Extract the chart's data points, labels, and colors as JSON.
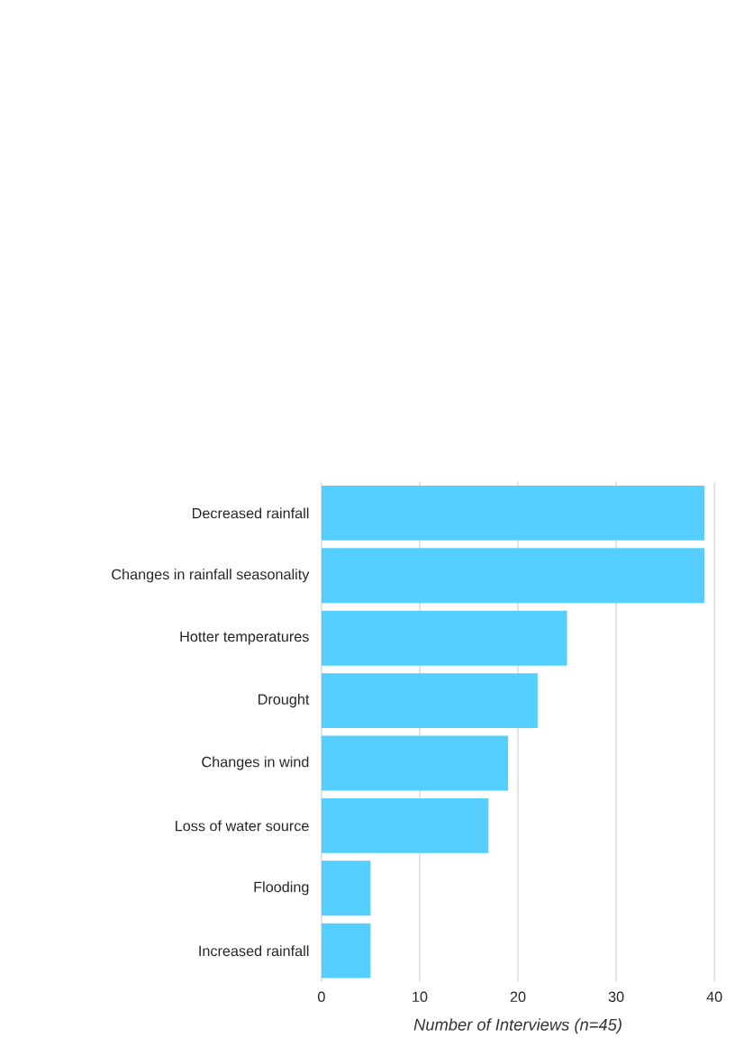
{
  "chart_data": {
    "type": "bar",
    "orientation": "horizontal",
    "xlabel": "Number of Interviews (n=45)",
    "categories": [
      "Decreased rainfall",
      "Changes in rainfall seasonality",
      "Hotter temperatures",
      "Drought",
      "Changes in wind",
      "Loss of water source",
      "Flooding",
      "Increased rainfall"
    ],
    "values": [
      39,
      39,
      25,
      22,
      19,
      17,
      5,
      5
    ],
    "color": "#55cfff",
    "xlim": [
      0,
      40
    ],
    "xticks": [
      0,
      10,
      20,
      30,
      40
    ],
    "grid": "x"
  }
}
